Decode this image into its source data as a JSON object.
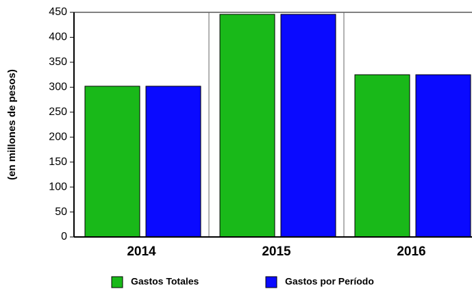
{
  "chart_data": {
    "type": "bar",
    "y_label": "(en millones de pesos)",
    "categories": [
      "2014",
      "2015",
      "2016"
    ],
    "series": [
      {
        "name": "Gastos Totales",
        "color": "#19b919",
        "values": [
          302,
          446,
          325
        ]
      },
      {
        "name": "Gastos por Período",
        "color": "#0a0aff",
        "values": [
          302,
          446,
          325
        ]
      }
    ],
    "ylim": [
      0,
      450
    ],
    "yticks": [
      0,
      50,
      100,
      150,
      200,
      250,
      300,
      350,
      400,
      450
    ],
    "grid": "vertical",
    "legend": "bottom"
  }
}
